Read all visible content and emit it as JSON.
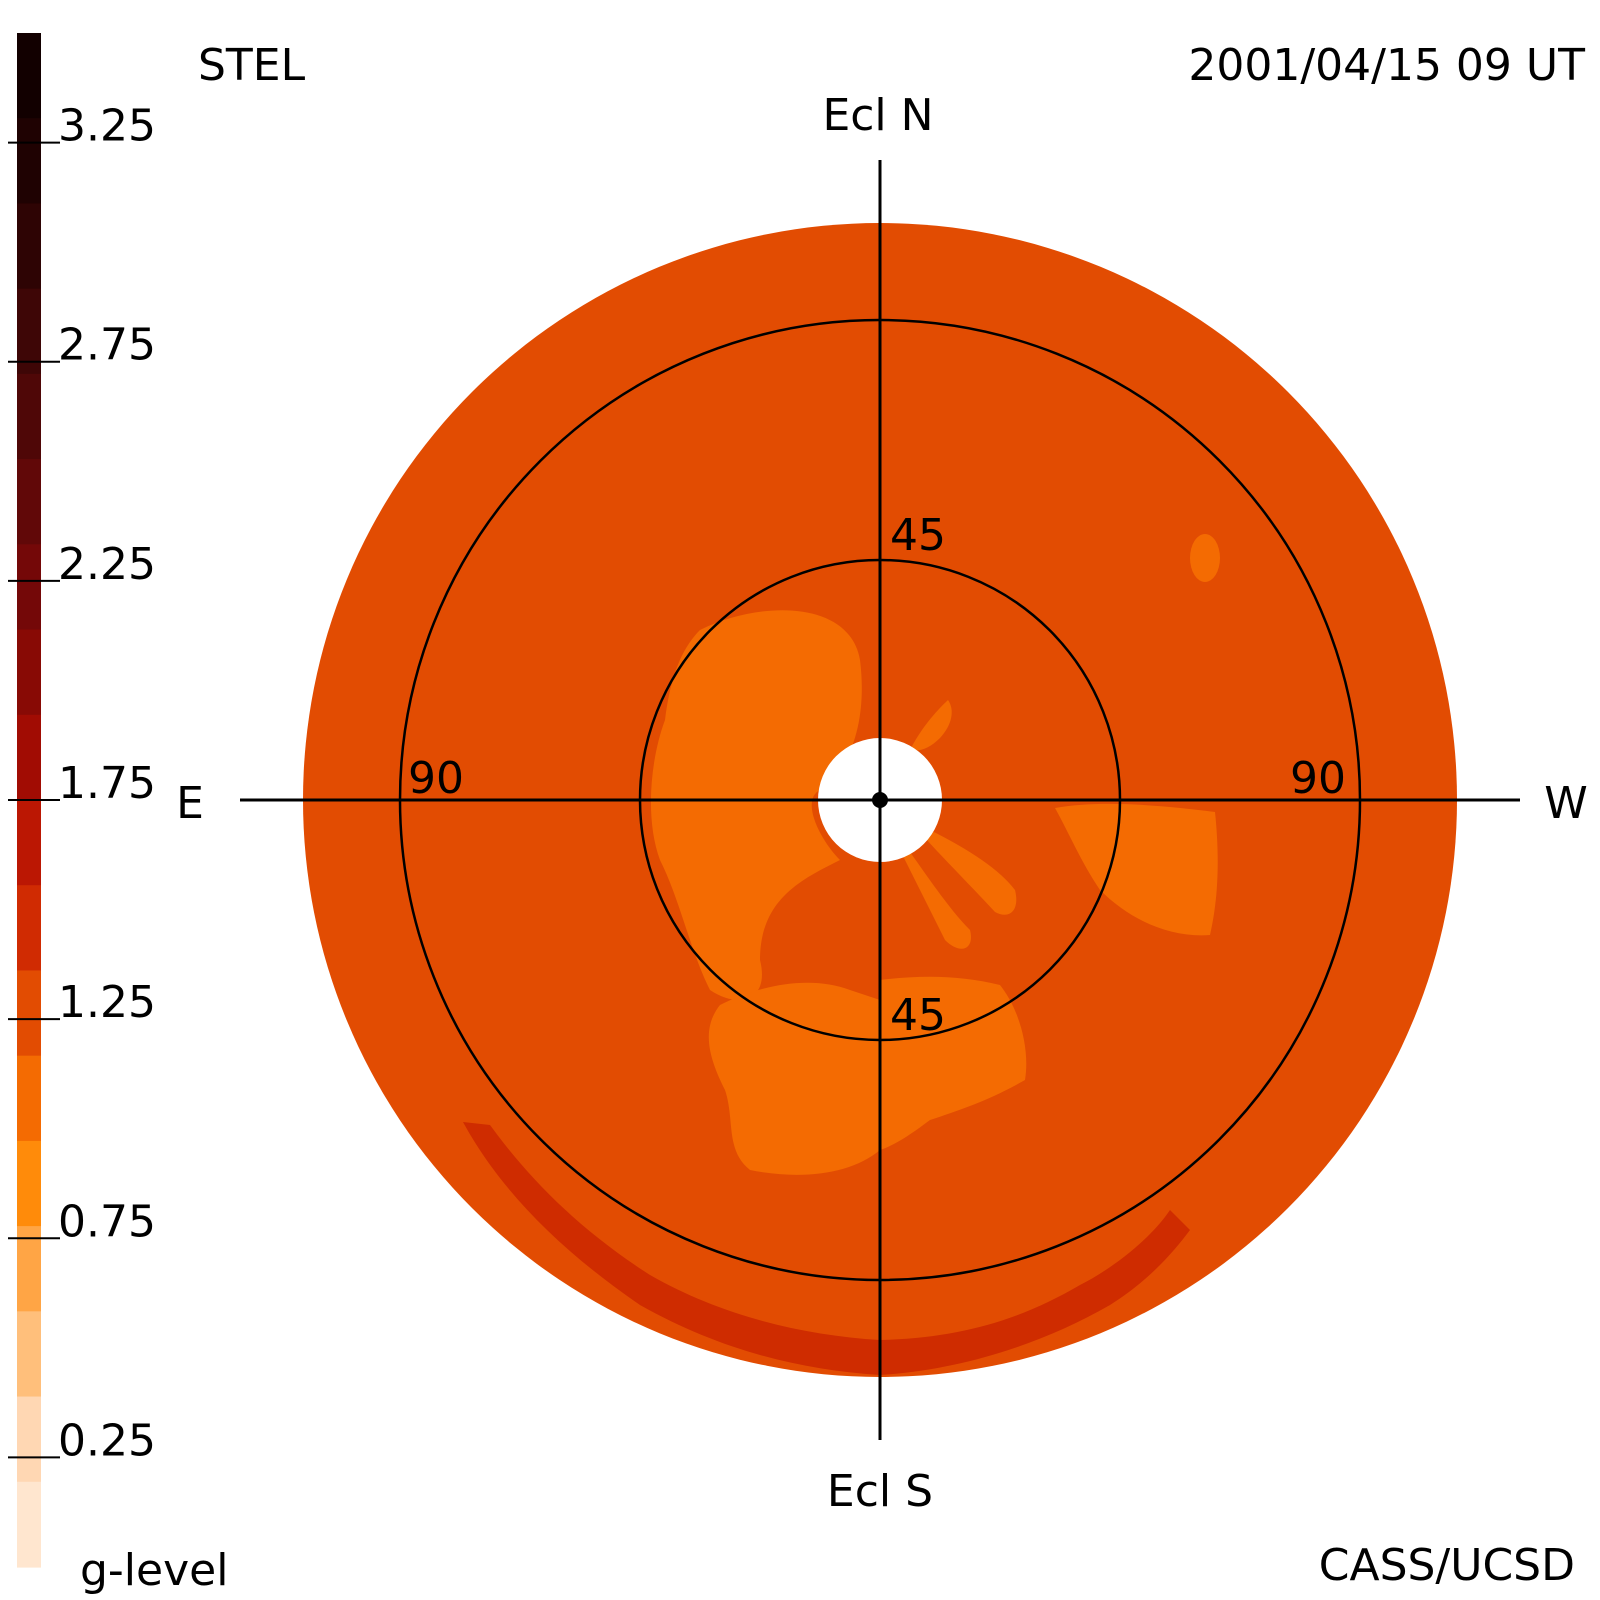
{
  "header": {
    "instrument": "STEL",
    "datetime": "2001/04/15 09 UT"
  },
  "footer": {
    "colorbar_title": "g-level",
    "credit": "CASS/UCSD"
  },
  "directions": {
    "north": "Ecl N",
    "south": "Ecl S",
    "east": "E",
    "west": "W"
  },
  "ring_labels": {
    "inner_top": "45",
    "inner_bottom": "45",
    "outer_left": "90",
    "outer_right": "90"
  },
  "colorbar": {
    "tick_labels": [
      "3.25",
      "2.75",
      "2.25",
      "1.75",
      "1.25",
      "0.75",
      "0.25"
    ],
    "segment_colors": [
      "#120000",
      "#1f0202",
      "#2e0404",
      "#3e0606",
      "#4f0707",
      "#610808",
      "#740808",
      "#880a05",
      "#a10c03",
      "#bb1703",
      "#d02b02",
      "#e24c02",
      "#f46b02",
      "#ff8b0a",
      "#ffa545",
      "#ffbf7b",
      "#ffd7b3",
      "#ffe6cf"
    ]
  },
  "chart_data": {
    "type": "heatmap",
    "title": "STEL",
    "subtitle": "2001/04/15 09 UT",
    "colorbar_label": "g-level",
    "colorbar_range": [
      0,
      3.5
    ],
    "colorbar_ticks": [
      0.25,
      0.75,
      1.25,
      1.75,
      2.25,
      2.75,
      3.25
    ],
    "projection": "fisheye sky map centred on the Sun",
    "elongation_circles_deg": [
      45,
      90
    ],
    "regions": [
      {
        "g_level_band": "1.0-1.25",
        "color": "#e24c02",
        "where": "background of disk"
      },
      {
        "g_level_band": "0.75-1.0",
        "color": "#f46b02",
        "where": "lobes near Sun (NE, E, SE, S, W)"
      },
      {
        "g_level_band": "1.25-1.5",
        "color": "#cf2c00",
        "where": "arcs near southern limb"
      }
    ]
  }
}
